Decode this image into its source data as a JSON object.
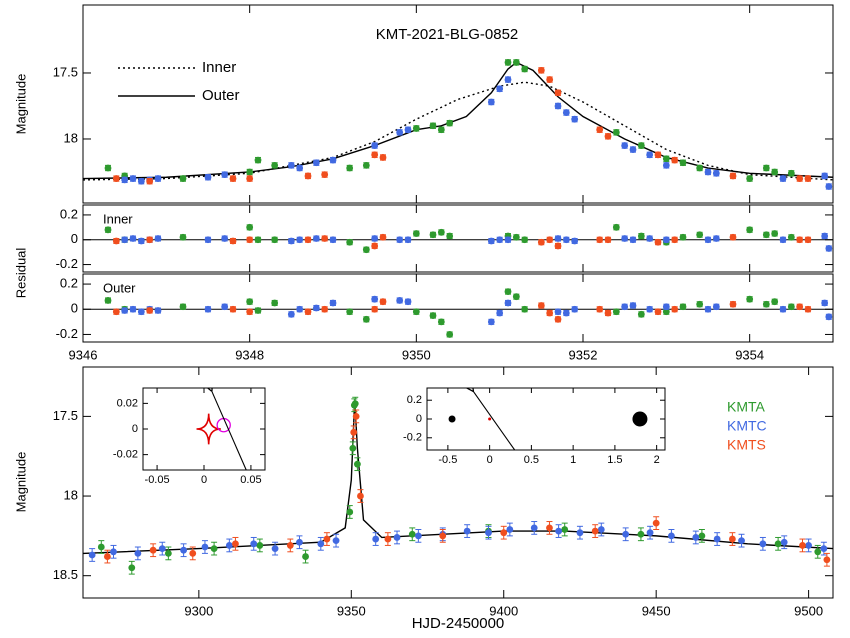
{
  "chart_data": [
    {
      "type": "scatter",
      "title": "KMT-2021-BLG-0852",
      "ylabel": "Magnitude",
      "xlim": [
        9346,
        9355
      ],
      "ylim": [
        18.485,
        16.985
      ],
      "xticks": [
        9346,
        9348,
        9350,
        9352,
        9354
      ],
      "yticks": [
        17.5,
        18
      ],
      "xtick_labels": false,
      "series": [
        {
          "color": "#2e9a2e",
          "error": 0.02,
          "x": [
            9346.3,
            9346.5,
            9347.2,
            9348.0,
            9348.1,
            9348.3,
            9349.2,
            9349.4,
            9350.0,
            9350.2,
            9350.3,
            9350.4,
            9351.1,
            9351.2,
            9351.3,
            9352.4,
            9352.7,
            9353.0,
            9353.2,
            9353.4,
            9354.0,
            9354.2,
            9354.3,
            9354.5
          ],
          "values": [
            18.22,
            18.28,
            18.3,
            18.25,
            18.16,
            18.2,
            18.22,
            18.2,
            17.92,
            17.9,
            17.93,
            17.88,
            17.42,
            17.42,
            17.47,
            17.95,
            18.05,
            18.15,
            18.18,
            18.22,
            18.3,
            18.22,
            18.25,
            18.26
          ]
        },
        {
          "color": "#4169e1",
          "error": 0.02,
          "x": [
            9346.5,
            9346.6,
            9346.7,
            9346.8,
            9346.9,
            9347.5,
            9347.7,
            9348.5,
            9348.6,
            9348.8,
            9349.0,
            9349.5,
            9349.8,
            9349.9,
            9350.9,
            9351.0,
            9351.1,
            9351.7,
            9351.8,
            9351.9,
            9352.5,
            9352.6,
            9352.8,
            9353.0,
            9353.5,
            9353.6,
            9354.4,
            9354.9,
            9354.95
          ],
          "values": [
            18.31,
            18.3,
            18.32,
            18.31,
            18.3,
            18.29,
            18.27,
            18.2,
            18.22,
            18.18,
            18.16,
            18.05,
            17.95,
            17.93,
            17.72,
            17.62,
            17.55,
            17.75,
            17.8,
            17.85,
            18.05,
            18.08,
            18.12,
            18.2,
            18.25,
            18.26,
            18.3,
            18.28,
            18.36
          ]
        },
        {
          "color": "#f04e1e",
          "error": 0.02,
          "x": [
            9346.4,
            9346.8,
            9347.8,
            9348.0,
            9348.7,
            9348.9,
            9349.5,
            9349.6,
            9351.5,
            9351.6,
            9351.7,
            9352.2,
            9352.3,
            9352.9,
            9353.1,
            9353.8,
            9354.6,
            9354.7
          ],
          "values": [
            18.3,
            18.32,
            18.3,
            18.3,
            18.28,
            18.27,
            18.12,
            18.14,
            17.48,
            17.55,
            17.65,
            17.93,
            17.98,
            18.12,
            18.16,
            18.28,
            18.3,
            18.3
          ]
        }
      ],
      "models": [
        {
          "name": "Inner",
          "style": "dotted",
          "x": [
            9346,
            9347,
            9348,
            9349,
            9349.5,
            9350,
            9350.5,
            9351,
            9351.3,
            9351.6,
            9352,
            9352.5,
            9353,
            9353.5,
            9354,
            9355
          ],
          "values": [
            18.31,
            18.3,
            18.26,
            18.14,
            18.02,
            17.85,
            17.7,
            17.6,
            17.57,
            17.6,
            17.72,
            17.9,
            18.08,
            18.2,
            18.27,
            18.31
          ]
        },
        {
          "name": "Outer",
          "style": "solid",
          "x": [
            9346,
            9347,
            9348,
            9348.5,
            9349,
            9349.5,
            9350,
            9350.3,
            9350.6,
            9350.9,
            9351.1,
            9351.2,
            9351.4,
            9351.7,
            9352,
            9352.5,
            9353,
            9353.5,
            9354,
            9355
          ],
          "values": [
            18.3,
            18.29,
            18.25,
            18.21,
            18.15,
            18.05,
            17.93,
            17.9,
            17.83,
            17.65,
            17.47,
            17.42,
            17.48,
            17.68,
            17.83,
            18.0,
            18.14,
            18.22,
            18.26,
            18.29
          ]
        }
      ]
    },
    {
      "type": "scatter",
      "label": "Inner",
      "ylabel": "Residual",
      "xlim": [
        9346,
        9355
      ],
      "ylim": [
        -0.26,
        0.28
      ],
      "xticks": [
        9346,
        9348,
        9350,
        9352,
        9354
      ],
      "yticks": [
        0.2,
        0,
        -0.2
      ],
      "xtick_labels": false,
      "reference_line": 0,
      "series": [
        {
          "color": "#2e9a2e",
          "error": 0.02,
          "x": [
            9346.3,
            9346.5,
            9347.2,
            9348.0,
            9348.1,
            9348.3,
            9349.2,
            9349.4,
            9350.0,
            9350.2,
            9350.3,
            9350.4,
            9351.1,
            9351.2,
            9351.3,
            9352.4,
            9352.7,
            9353.0,
            9353.2,
            9353.4,
            9354.0,
            9354.2,
            9354.3,
            9354.5
          ],
          "values": [
            0.08,
            0,
            0.02,
            0.1,
            0,
            0,
            -0.02,
            -0.08,
            0.05,
            0.04,
            0.06,
            0.03,
            0.03,
            0.02,
            0,
            0.1,
            0.03,
            -0.02,
            0.02,
            0.04,
            0.08,
            0.04,
            0.05,
            0.02
          ]
        },
        {
          "color": "#4169e1",
          "error": 0.02,
          "x": [
            9346.5,
            9346.6,
            9346.7,
            9346.8,
            9346.9,
            9347.5,
            9347.7,
            9348.5,
            9348.6,
            9348.8,
            9349.0,
            9349.5,
            9349.8,
            9349.9,
            9350.9,
            9351.0,
            9351.1,
            9351.7,
            9351.8,
            9351.9,
            9352.5,
            9352.6,
            9352.8,
            9353.0,
            9353.5,
            9353.6,
            9354.4,
            9354.9,
            9354.95
          ],
          "values": [
            0,
            0.01,
            -0.01,
            0,
            0.01,
            0,
            0.01,
            -0.01,
            0,
            0.01,
            0,
            0.01,
            0,
            0,
            -0.01,
            0,
            0,
            0.01,
            0,
            -0.01,
            0.01,
            0,
            0.01,
            0,
            0,
            0.01,
            0,
            0.03,
            -0.07
          ]
        },
        {
          "color": "#f04e1e",
          "error": 0.02,
          "x": [
            9346.4,
            9346.8,
            9347.8,
            9348.0,
            9348.7,
            9348.9,
            9349.5,
            9349.6,
            9351.5,
            9351.6,
            9351.7,
            9352.2,
            9352.3,
            9352.9,
            9353.1,
            9353.8,
            9354.6,
            9354.7
          ],
          "values": [
            -0.01,
            0,
            -0.01,
            0,
            0,
            0.01,
            -0.05,
            0.02,
            -0.02,
            0,
            -0.05,
            0,
            0,
            -0.02,
            0,
            0.02,
            0,
            0
          ]
        }
      ]
    },
    {
      "type": "scatter",
      "label": "Outer",
      "xlim": [
        9346,
        9355
      ],
      "ylim": [
        -0.26,
        0.28
      ],
      "xticks": [
        9346,
        9348,
        9350,
        9352,
        9354
      ],
      "yticks": [
        0.2,
        0,
        -0.2
      ],
      "xtick_labels": true,
      "reference_line": 0,
      "series": [
        {
          "color": "#2e9a2e",
          "error": 0.02,
          "x": [
            9346.3,
            9346.5,
            9347.2,
            9348.0,
            9348.1,
            9348.3,
            9349.2,
            9349.4,
            9350.0,
            9350.2,
            9350.3,
            9350.4,
            9351.1,
            9351.2,
            9351.3,
            9352.4,
            9352.7,
            9353.0,
            9353.2,
            9353.4,
            9354.0,
            9354.2,
            9354.3,
            9354.5
          ],
          "values": [
            0.07,
            0,
            0.02,
            0.06,
            -0.01,
            0.05,
            -0.02,
            -0.08,
            -0.02,
            -0.05,
            -0.1,
            -0.2,
            0.14,
            0.1,
            0,
            -0.02,
            -0.04,
            -0.02,
            0.02,
            0.04,
            0.08,
            0.04,
            0.06,
            0.02
          ]
        },
        {
          "color": "#4169e1",
          "error": 0.02,
          "x": [
            9346.5,
            9346.6,
            9346.7,
            9346.8,
            9346.9,
            9347.5,
            9347.7,
            9348.5,
            9348.6,
            9348.8,
            9349.0,
            9349.5,
            9349.8,
            9349.9,
            9350.9,
            9351.0,
            9351.1,
            9351.7,
            9351.8,
            9351.9,
            9352.5,
            9352.6,
            9352.8,
            9353.0,
            9353.5,
            9353.6,
            9354.4,
            9354.9,
            9354.95
          ],
          "values": [
            -0.01,
            0,
            -0.02,
            0,
            -0.01,
            0,
            0.02,
            -0.04,
            0,
            0.01,
            0.05,
            0.08,
            0.07,
            0.06,
            -0.1,
            -0.03,
            0.05,
            -0.02,
            -0.03,
            0,
            0.02,
            0.03,
            0,
            0.02,
            0,
            0.02,
            0,
            0.05,
            -0.06
          ]
        },
        {
          "color": "#f04e1e",
          "error": 0.02,
          "x": [
            9346.4,
            9346.8,
            9347.8,
            9348.0,
            9348.7,
            9348.9,
            9349.5,
            9349.6,
            9351.5,
            9351.6,
            9351.7,
            9352.2,
            9352.3,
            9352.9,
            9353.1,
            9353.8,
            9354.6,
            9354.7
          ],
          "values": [
            -0.02,
            -0.01,
            0,
            -0.02,
            -0.02,
            0,
            0,
            0.06,
            0.03,
            -0.03,
            -0.08,
            0,
            -0.03,
            -0.02,
            0,
            0.04,
            0.02,
            0
          ]
        }
      ]
    },
    {
      "type": "scatter",
      "xlabel": "HJD-2450000",
      "ylabel": "Magnitude",
      "xlim": [
        9262,
        9508
      ],
      "ylim": [
        18.64,
        17.19
      ],
      "xticks": [
        9300,
        9350,
        9400,
        9450,
        9500
      ],
      "yticks": [
        17.5,
        18,
        18.5
      ],
      "xtick_labels": true,
      "series": [
        {
          "name": "KMTA",
          "color": "#2e9a2e",
          "error": 0.04,
          "x": [
            9268,
            9278,
            9290,
            9305,
            9320,
            9335,
            9349.5,
            9350.5,
            9351,
            9351.3,
            9352,
            9370,
            9395,
            9420,
            9445,
            9465,
            9490,
            9503
          ],
          "values": [
            18.32,
            18.45,
            18.36,
            18.33,
            18.31,
            18.38,
            18.1,
            17.7,
            17.43,
            17.42,
            17.8,
            18.24,
            18.22,
            18.21,
            18.24,
            18.25,
            18.3,
            18.35
          ]
        },
        {
          "name": "KMTC",
          "color": "#4169e1",
          "error": 0.04,
          "x": [
            9265,
            9272,
            9280,
            9288,
            9295,
            9302,
            9310,
            9318,
            9325,
            9333,
            9340,
            9345,
            9358,
            9365,
            9372,
            9380,
            9388,
            9395,
            9402,
            9410,
            9418,
            9425,
            9432,
            9440,
            9448,
            9455,
            9463,
            9470,
            9478,
            9485,
            9492,
            9500,
            9505
          ],
          "values": [
            18.37,
            18.35,
            18.36,
            18.33,
            18.34,
            18.32,
            18.31,
            18.3,
            18.33,
            18.29,
            18.3,
            18.28,
            18.27,
            18.26,
            18.25,
            18.24,
            18.22,
            18.23,
            18.21,
            18.2,
            18.22,
            18.23,
            18.21,
            18.24,
            18.23,
            18.25,
            18.26,
            18.27,
            18.28,
            18.3,
            18.29,
            18.31,
            18.33
          ]
        },
        {
          "name": "KMTS",
          "color": "#f04e1e",
          "error": 0.04,
          "x": [
            9270,
            9285,
            9298,
            9312,
            9330,
            9342,
            9350.8,
            9351.6,
            9353,
            9362,
            9380,
            9400,
            9415,
            9430,
            9450,
            9475,
            9498,
            9506
          ],
          "values": [
            18.38,
            18.34,
            18.36,
            18.3,
            18.31,
            18.27,
            17.6,
            17.5,
            18.0,
            18.27,
            18.25,
            18.23,
            18.2,
            18.22,
            18.17,
            18.27,
            18.31,
            18.4
          ]
        }
      ],
      "models": [
        {
          "style": "solid",
          "x": [
            9262,
            9300,
            9340,
            9348,
            9350,
            9351,
            9351.2,
            9352,
            9354,
            9360,
            9400,
            9420,
            9450,
            9480,
            9508
          ],
          "values": [
            18.36,
            18.33,
            18.29,
            18.2,
            17.9,
            17.45,
            17.42,
            17.7,
            18.15,
            18.26,
            18.22,
            18.22,
            18.25,
            18.3,
            18.33
          ]
        }
      ]
    },
    {
      "type": "scatter",
      "xlim": [
        -0.065,
        0.065
      ],
      "ylim": [
        -0.032,
        0.032
      ],
      "xticks": [
        -0.05,
        0,
        0.05
      ],
      "yticks": [
        0.02,
        0,
        -0.02
      ],
      "xtick_labels": true,
      "caustic": {
        "color": "#e00000",
        "x": [
          -0.008,
          0.005,
          0.018,
          0.005
        ],
        "y": [
          0,
          0.012,
          0,
          -0.012
        ]
      },
      "source": {
        "color": "#e000e0",
        "x": 0.021,
        "y": 0.003,
        "radius": 0.007
      },
      "trajectory": {
        "x": [
          0.008,
          0.045
        ],
        "y": [
          0.03,
          -0.032
        ]
      }
    },
    {
      "type": "scatter",
      "xlim": [
        -0.75,
        2.1
      ],
      "ylim": [
        -0.33,
        0.33
      ],
      "xticks": [
        -0.5,
        0,
        0.5,
        1,
        1.5,
        2
      ],
      "yticks": [
        0.2,
        0,
        -0.2
      ],
      "xtick_labels": true,
      "points": {
        "x": [
          -0.45,
          0,
          1.8
        ],
        "values": [
          0,
          0,
          0
        ],
        "sizes": [
          3.5,
          1.5,
          7.5
        ],
        "colors": [
          "#000000",
          "#e00000",
          "#000000"
        ]
      },
      "trajectory": {
        "x": [
          -0.2,
          0.3
        ],
        "y": [
          0.3,
          -0.33
        ]
      }
    }
  ]
}
